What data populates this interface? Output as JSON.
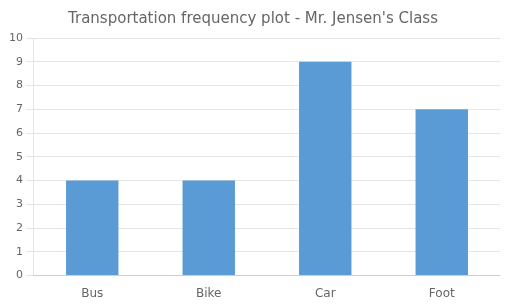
{
  "chart_data": {
    "type": "bar",
    "title": "Transportation frequency plot - Mr. Jensen's Class",
    "categories": [
      "Bus",
      "Bike",
      "Car",
      "Foot"
    ],
    "values": [
      4,
      4,
      9,
      7
    ],
    "color": "#5B9BD5",
    "ylim": [
      0,
      10
    ],
    "yticks": [
      0,
      1,
      2,
      3,
      4,
      5,
      6,
      7,
      8,
      9,
      10
    ],
    "grid": true
  }
}
